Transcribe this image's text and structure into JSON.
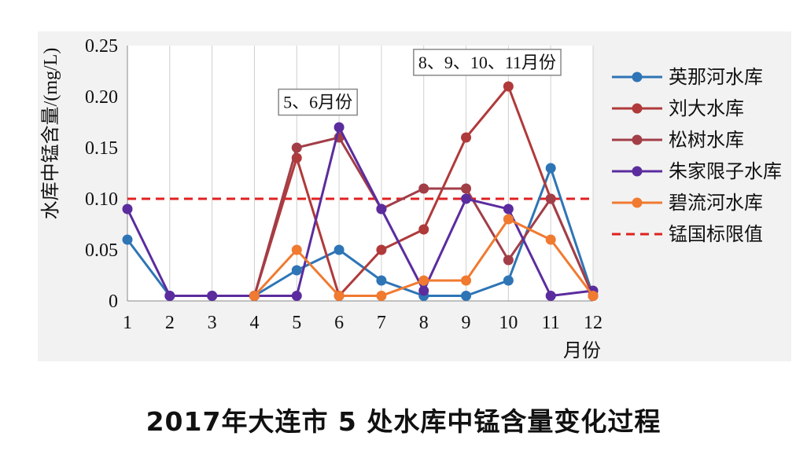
{
  "caption": "2017年大连市 5 处水库中锰含量变化过程",
  "chart_data": {
    "type": "line",
    "ylabel": "水库中锰含量/(mg/L)",
    "xlabel": "月份",
    "x": [
      1,
      2,
      3,
      4,
      5,
      6,
      7,
      8,
      9,
      10,
      11,
      12
    ],
    "ylim": [
      0,
      0.25
    ],
    "yticks": [
      "0",
      "0.05",
      "0.10",
      "0.15",
      "0.20",
      "0.25"
    ],
    "grid": "vertical",
    "legend_position": "right",
    "series": [
      {
        "name": "英那河水库",
        "color": "#2e75b6",
        "values": [
          0.06,
          0.005,
          0.005,
          0.005,
          0.03,
          0.05,
          0.02,
          0.005,
          0.005,
          0.02,
          0.13,
          0.005
        ]
      },
      {
        "name": "刘大水库",
        "color": "#b03a3a",
        "values": [
          null,
          null,
          null,
          0.005,
          0.14,
          0.005,
          0.05,
          0.07,
          0.16,
          0.21,
          0.1,
          0.005
        ]
      },
      {
        "name": "松树水库",
        "color": "#a23e48",
        "values": [
          null,
          null,
          null,
          0.005,
          0.15,
          0.16,
          0.09,
          0.11,
          0.11,
          0.04,
          0.1,
          0.005
        ]
      },
      {
        "name": "朱家限子水库",
        "color": "#5b2c9e",
        "values": [
          0.09,
          0.005,
          0.005,
          0.005,
          0.005,
          0.17,
          0.09,
          0.01,
          0.1,
          0.09,
          0.005,
          0.01
        ]
      },
      {
        "name": "碧流河水库",
        "color": "#f07a30",
        "values": [
          null,
          null,
          null,
          0.005,
          0.05,
          0.005,
          0.005,
          0.02,
          0.02,
          0.08,
          0.06,
          0.005
        ]
      }
    ],
    "reference_line": {
      "name": "锰国标限值",
      "value": 0.1,
      "color": "#e02020",
      "style": "dashed"
    },
    "annotations": [
      {
        "text": "5、6月份",
        "x": 5.5,
        "y": 0.195
      },
      {
        "text": "8、9、10、11月份",
        "x": 9.5,
        "y": 0.234
      }
    ]
  }
}
